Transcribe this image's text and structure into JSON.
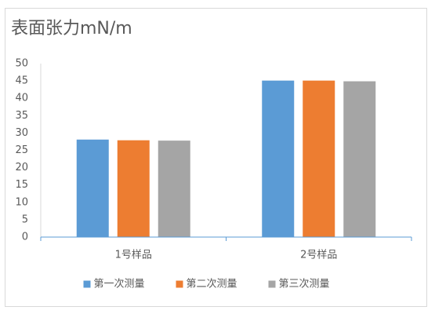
{
  "chart_data": {
    "type": "bar",
    "title": "表面张力mN/m",
    "categories": [
      "1号样品",
      "2号样品"
    ],
    "series": [
      {
        "name": "第一次测量",
        "color": "#5b9bd5",
        "values": [
          28.1,
          45.1
        ]
      },
      {
        "name": "第二次测量",
        "color": "#ed7d31",
        "values": [
          27.9,
          45.1
        ]
      },
      {
        "name": "第三次测量",
        "color": "#a5a5a5",
        "values": [
          27.8,
          44.9
        ]
      }
    ],
    "ylim": [
      0,
      50
    ],
    "yticks": [
      0,
      5,
      10,
      15,
      20,
      25,
      30,
      35,
      40,
      45,
      50
    ],
    "grid": false,
    "legend": "bottom"
  }
}
